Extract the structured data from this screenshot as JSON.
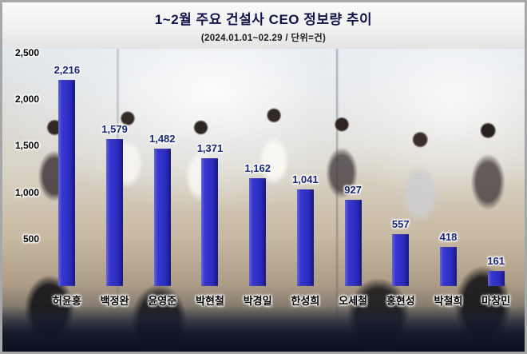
{
  "header": {
    "title": "1~2월 주요 건설사 CEO 정보량 추이",
    "subtitle": "(2024.01.01~02.29 / 단위=건)"
  },
  "chart_data": {
    "type": "bar",
    "title": "1~2월 주요 건설사 CEO 정보량 추이",
    "subtitle": "(2024.01.01~02.29 / 단위=건)",
    "categories": [
      "허윤홍",
      "백정완",
      "윤영준",
      "박현철",
      "박경일",
      "한성희",
      "오세철",
      "홍현성",
      "박철희",
      "마창민"
    ],
    "values": [
      2216,
      1579,
      1482,
      1371,
      1162,
      1041,
      927,
      557,
      418,
      161
    ],
    "value_labels": [
      "2,216",
      "1,579",
      "1,482",
      "1,371",
      "1,162",
      "1,041",
      "927",
      "557",
      "418",
      "161"
    ],
    "ylim": [
      0,
      2500
    ],
    "yticks": [
      {
        "value": 2500,
        "label": "2,500"
      },
      {
        "value": 2000,
        "label": "2,000"
      },
      {
        "value": 1500,
        "label": "1,500"
      },
      {
        "value": 1000,
        "label": "1,000"
      },
      {
        "value": 500,
        "label": "500"
      }
    ],
    "grid": false,
    "legend": "none",
    "bar_color": "#2424b4",
    "bar_color_light": "#3d3dd8",
    "value_label_color": "#17277a",
    "category_label_color": "#000000"
  }
}
